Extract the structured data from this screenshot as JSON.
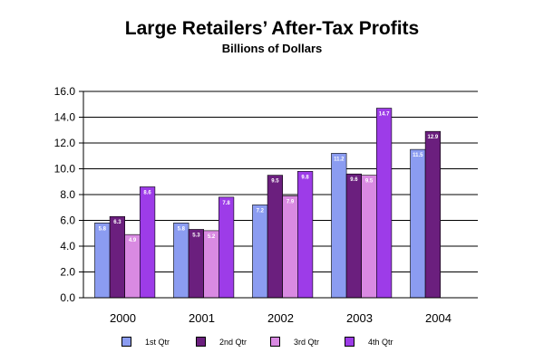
{
  "chart_data": {
    "type": "bar",
    "title": "Large Retailers’ After-Tax Profits",
    "subtitle": "Billions of Dollars",
    "xlabel": "",
    "ylabel": "",
    "ylim": [
      0,
      16
    ],
    "yticks": [
      "0.0",
      "2.0",
      "4.0",
      "6.0",
      "8.0",
      "10.0",
      "12.0",
      "14.0",
      "16.0"
    ],
    "grid": true,
    "legend_position": "bottom",
    "categories": [
      "2000",
      "2001",
      "2002",
      "2003",
      "2004"
    ],
    "series": [
      {
        "name": "1st Qtr",
        "color": "#8b9cf1",
        "values": [
          5.8,
          5.8,
          7.2,
          11.2,
          11.5
        ],
        "labels": [
          "5.8",
          "5.8",
          "7.2",
          "11.2",
          "11.5"
        ]
      },
      {
        "name": "2nd Qtr",
        "color": "#6b1f7e",
        "values": [
          6.3,
          5.3,
          9.5,
          9.6,
          12.9
        ],
        "labels": [
          "6.3",
          "5.3",
          "9.5",
          "9.6",
          "12.9"
        ]
      },
      {
        "name": "3rd Qtr",
        "color": "#d98ae2",
        "values": [
          4.9,
          5.2,
          7.9,
          9.5,
          null
        ],
        "labels": [
          "4.9",
          "5.2",
          "7.9",
          "9.5",
          ""
        ]
      },
      {
        "name": "4th Qtr",
        "color": "#9d3ce8",
        "values": [
          8.6,
          7.8,
          9.8,
          14.7,
          null
        ],
        "labels": [
          "8.6",
          "7.8",
          "9.8",
          "14.7",
          ""
        ]
      }
    ]
  }
}
